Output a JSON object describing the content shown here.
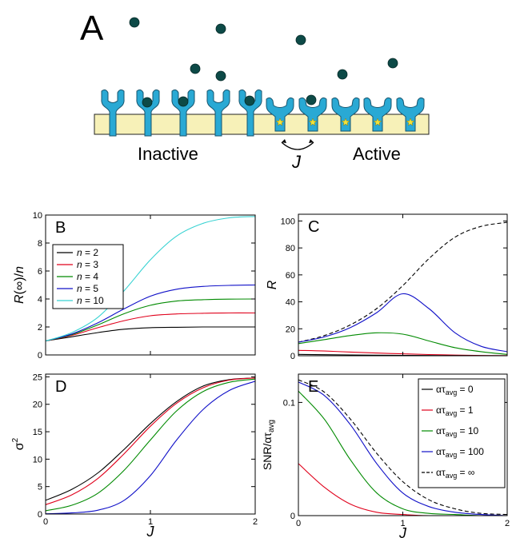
{
  "figure": {
    "panel_a": {
      "letter": "A",
      "inactive_label": "Inactive",
      "active_label": "Active",
      "coupling_label": "J",
      "colors": {
        "receptor": "#29a9d4",
        "receptor_stroke": "#17556e",
        "ligand": "#0d4a47",
        "membrane": "#f7f1b8",
        "star": "#f2e23a"
      }
    }
  },
  "chart_data": [
    {
      "panel": "B",
      "type": "line",
      "xlabel": "",
      "ylabel": "R(∞)/n",
      "xlim": [
        0,
        2
      ],
      "ylim": [
        0,
        10
      ],
      "yticks": [
        0,
        2,
        4,
        6,
        8,
        10
      ],
      "xticks": [
        0,
        1,
        2
      ],
      "x": [
        0,
        0.25,
        0.5,
        0.75,
        1.0,
        1.25,
        1.5,
        1.75,
        2.0
      ],
      "legend": "top-left",
      "series": [
        {
          "name": "n = 2",
          "color": "#000000",
          "values": [
            1.0,
            1.3,
            1.6,
            1.84,
            1.95,
            1.98,
            2.0,
            2.0,
            2.0
          ]
        },
        {
          "name": "n = 3",
          "color": "#e0001b",
          "values": [
            1.0,
            1.4,
            1.95,
            2.45,
            2.8,
            2.93,
            2.98,
            3.0,
            3.0
          ]
        },
        {
          "name": "n = 4",
          "color": "#008a00",
          "values": [
            1.0,
            1.45,
            2.15,
            2.95,
            3.55,
            3.85,
            3.95,
            3.99,
            4.0
          ]
        },
        {
          "name": "n = 5",
          "color": "#1010c8",
          "values": [
            1.0,
            1.5,
            2.3,
            3.3,
            4.2,
            4.7,
            4.9,
            4.97,
            5.0
          ]
        },
        {
          "name": "n = 10",
          "color": "#37d2d2",
          "values": [
            1.0,
            1.6,
            2.7,
            4.6,
            6.8,
            8.5,
            9.4,
            9.8,
            9.9
          ]
        }
      ]
    },
    {
      "panel": "C",
      "type": "line",
      "xlabel": "",
      "ylabel": "R",
      "xlim": [
        0,
        2
      ],
      "ylim": [
        0,
        105
      ],
      "yticks": [
        0,
        20,
        40,
        60,
        80,
        100
      ],
      "xticks": [
        0,
        1,
        2
      ],
      "x": [
        0,
        0.25,
        0.5,
        0.75,
        1.0,
        1.25,
        1.5,
        1.75,
        2.0
      ],
      "series": [
        {
          "color": "#000000",
          "dashed": true,
          "values": [
            10,
            15,
            23,
            35,
            52,
            72,
            88,
            96,
            99
          ]
        },
        {
          "color": "#1010c8",
          "values": [
            10,
            14,
            21,
            32,
            46,
            35,
            17,
            7,
            3
          ]
        },
        {
          "color": "#008a00",
          "values": [
            9,
            12,
            15,
            17,
            16,
            11,
            6,
            3,
            1
          ]
        },
        {
          "color": "#e0001b",
          "values": [
            4,
            3.5,
            2.7,
            2,
            1.4,
            0.9,
            0.5,
            0.2,
            0.1
          ]
        },
        {
          "color": "#000000",
          "values": [
            1,
            0.8,
            0.6,
            0.4,
            0.3,
            0.2,
            0.1,
            0.05,
            0
          ]
        }
      ]
    },
    {
      "panel": "D",
      "type": "line",
      "xlabel": "J",
      "ylabel": "σ²",
      "xlim": [
        0,
        2
      ],
      "ylim": [
        0,
        25.5
      ],
      "yticks": [
        0,
        5,
        10,
        15,
        20,
        25
      ],
      "xticks": [
        0,
        1,
        2
      ],
      "x": [
        0,
        0.25,
        0.5,
        0.75,
        1.0,
        1.25,
        1.5,
        1.75,
        2.0
      ],
      "series": [
        {
          "color": "#000000",
          "values": [
            2.5,
            4.5,
            7.5,
            11.8,
            16.5,
            20.5,
            23.3,
            24.5,
            24.8
          ]
        },
        {
          "color": "#e0001b",
          "values": [
            1.7,
            3.5,
            6.5,
            11.0,
            16.0,
            20.2,
            23.0,
            24.4,
            24.8
          ]
        },
        {
          "color": "#008a00",
          "values": [
            0.6,
            1.6,
            3.8,
            8.0,
            13.5,
            18.8,
            22.3,
            24.0,
            24.6
          ]
        },
        {
          "color": "#1010c8",
          "values": [
            0.05,
            0.2,
            0.7,
            2.5,
            7.0,
            13.5,
            19.0,
            22.5,
            24.2
          ]
        }
      ]
    },
    {
      "panel": "E",
      "type": "line",
      "xlabel": "J",
      "ylabel": "SNR/ατavg",
      "xlim": [
        0,
        2
      ],
      "ylim": [
        0,
        0.125
      ],
      "yticks": [
        0,
        0.1
      ],
      "xticks": [
        0,
        1,
        2
      ],
      "x": [
        0,
        0.25,
        0.5,
        0.75,
        1.0,
        1.25,
        1.5,
        1.75,
        2.0
      ],
      "legend": "top-right",
      "series": [
        {
          "name": "ατavg = 0",
          "color": "#000000",
          "values": [
            0,
            0,
            0,
            0,
            0,
            0,
            0,
            0,
            0
          ]
        },
        {
          "name": "ατavg = 1",
          "color": "#e0001b",
          "values": [
            0.046,
            0.025,
            0.01,
            0.003,
            0.001,
            0,
            0,
            0,
            0
          ]
        },
        {
          "name": "ατavg = 10",
          "color": "#008a00",
          "values": [
            0.11,
            0.085,
            0.049,
            0.02,
            0.006,
            0.002,
            0.001,
            0,
            0
          ]
        },
        {
          "name": "ατavg = 100",
          "color": "#1010c8",
          "values": [
            0.118,
            0.106,
            0.08,
            0.046,
            0.02,
            0.008,
            0.003,
            0.001,
            0
          ]
        },
        {
          "name": "ατavg = ∞",
          "color": "#000000",
          "dashed": true,
          "values": [
            0.12,
            0.109,
            0.085,
            0.055,
            0.03,
            0.014,
            0.006,
            0.002,
            0.001
          ]
        }
      ]
    }
  ]
}
